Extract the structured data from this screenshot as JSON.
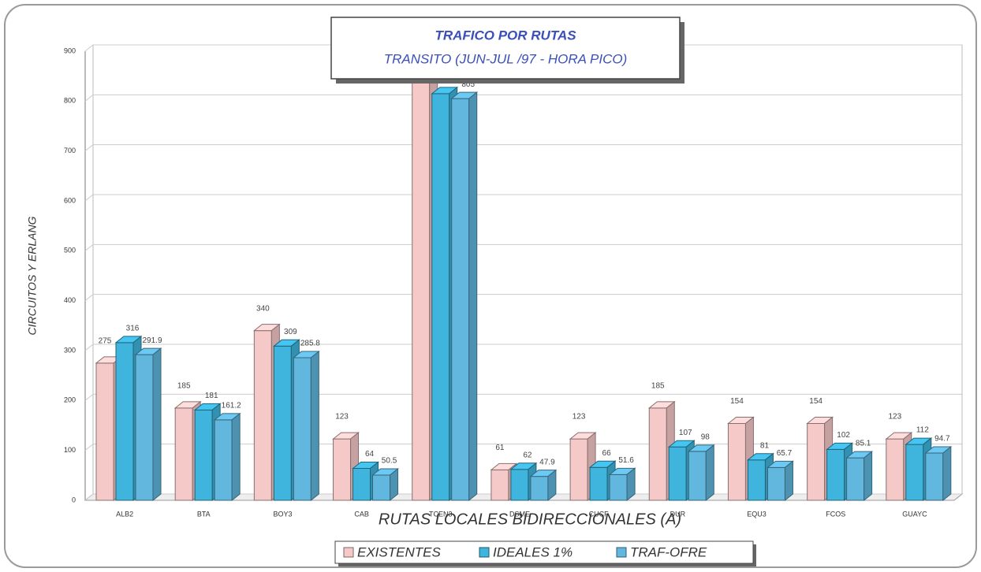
{
  "chart_data": {
    "type": "bar3d",
    "title": [
      "TRAFICO POR RUTAS",
      "TRANSITO (JUN-JUL /97 - HORA PICO)"
    ],
    "ylabel": "CIRCUITOS Y ERLANG",
    "xlabel": "RUTAS LOCALES BIDIRECCIONALES (A)",
    "categories": [
      "ALB2",
      "BTA",
      "BOY3",
      "CAB",
      "TCEN3",
      "DSME",
      "CUCF",
      "DUR",
      "EQU3",
      "FCOS",
      "GUAYC"
    ],
    "series": [
      {
        "name": "EXISTENTES",
        "color": "#f6c9c9",
        "values": [
          275,
          185,
          340,
          123,
          860,
          61,
          123,
          185,
          154,
          154,
          123
        ]
      },
      {
        "name": "IDEALES 1%",
        "color": "#3fb4dc",
        "values": [
          316,
          181,
          309,
          64,
          815,
          62,
          66,
          107,
          81,
          102,
          112
        ]
      },
      {
        "name": "TRAF-OFRE",
        "color": "#62b7de",
        "values": [
          291.9,
          161.2,
          285.8,
          50.5,
          805,
          47.9,
          51.6,
          98,
          65.7,
          85.1,
          94.7
        ]
      }
    ],
    "ylim": [
      0,
      900
    ],
    "yticks": [
      0,
      100,
      200,
      300,
      400,
      500,
      600,
      700,
      800,
      900
    ],
    "grid": true,
    "legend": "bottom"
  }
}
